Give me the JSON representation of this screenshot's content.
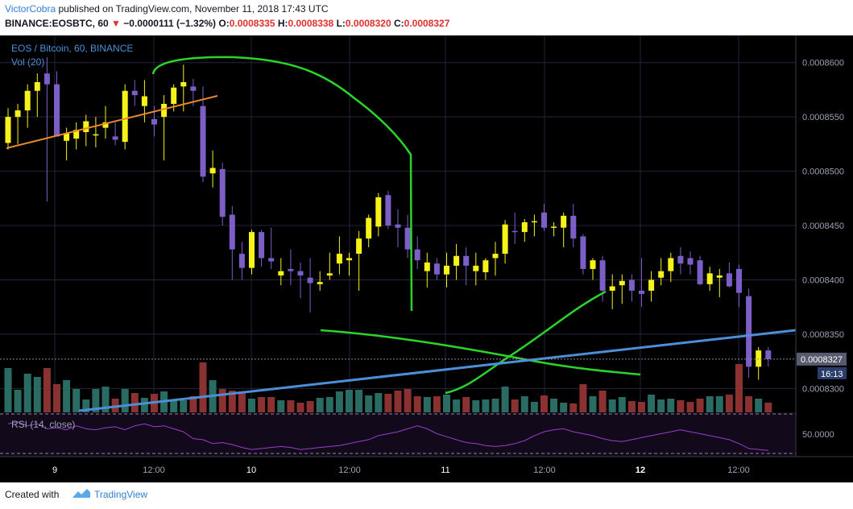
{
  "header": {
    "author": "VictorCobra",
    "published_text": " published on TradingView.com, November 11, 2018 17:43 UTC",
    "symbol_info": "BINANCE:EOSBTC, 60",
    "change_arrow": "▼",
    "change": "−0.0000111 (−1.32%)",
    "o_label": "O:",
    "o_value": "0.0008335",
    "h_label": "H:",
    "h_value": "0.0008338",
    "l_label": "L:",
    "l_value": "0.0008320",
    "c_label": "C:",
    "c_value": "0.0008327"
  },
  "legend": {
    "title": "EOS / Bitcoin, 60, BINANCE",
    "volume": "Vol (20)",
    "rsi": "RSI (14, close)"
  },
  "price_axis": {
    "ticks": [
      "0.0008600",
      "0.0008550",
      "0.0008500",
      "0.0008450",
      "0.0008400",
      "0.0008350",
      "0.0008300"
    ],
    "tick_values": [
      0.00086,
      0.000855,
      0.00085,
      0.000845,
      0.00084,
      0.000835,
      0.00083
    ],
    "current_price": "0.0008327",
    "current_price_value": 0.0008327,
    "countdown": "16:13",
    "rsi_tick": "50.0000"
  },
  "time_axis": {
    "labels": [
      "9",
      "12:00",
      "10",
      "12:00",
      "11",
      "12:00",
      "12",
      "12:00"
    ]
  },
  "footer": {
    "created_with": "Created with",
    "brand": "TradingView"
  },
  "colors": {
    "bull": "#f7f21a",
    "bear": "#7b5fc7",
    "vol_bull": "#2a6b63",
    "vol_bear": "#8a3232",
    "green_drawing": "#2bd42b",
    "trendline": "#4a8fd8",
    "orange_line": "#e8892c",
    "rsi_line": "#9d3ad0",
    "grid": "#25253d",
    "rsi_band": "#1a0f24",
    "price_label_bg": "#575b6b"
  },
  "chart_data": {
    "type": "candlestick",
    "title": "EOS / Bitcoin, 60, BINANCE",
    "interval": "60",
    "ylim": [
      0.000828,
      0.000863
    ],
    "x_labels": [
      "9",
      "12:00",
      "10",
      "12:00",
      "11",
      "12:00",
      "12",
      "12:00"
    ],
    "candles": [
      [
        0.0008526,
        0.0008558,
        0.000852,
        0.000855
      ],
      [
        0.000855,
        0.0008562,
        0.0008525,
        0.0008556
      ],
      [
        0.0008556,
        0.000858,
        0.000854,
        0.0008574
      ],
      [
        0.0008574,
        0.000859,
        0.000855,
        0.0008582
      ],
      [
        0.000859,
        0.0008605,
        0.0008472,
        0.000858
      ],
      [
        0.000858,
        0.0008592,
        0.0008535,
        0.0008532
      ],
      [
        0.0008528,
        0.000854,
        0.000851,
        0.0008535
      ],
      [
        0.000853,
        0.0008545,
        0.000852,
        0.0008538
      ],
      [
        0.0008536,
        0.0008552,
        0.0008523,
        0.0008546
      ],
      [
        0.0008534,
        0.000855,
        0.0008522,
        0.0008534
      ],
      [
        0.000854,
        0.000856,
        0.000853,
        0.0008545
      ],
      [
        0.0008532,
        0.0008545,
        0.0008524,
        0.0008529
      ],
      [
        0.0008527,
        0.000858,
        0.000852,
        0.0008574
      ],
      [
        0.0008574,
        0.0008584,
        0.000856,
        0.000857
      ],
      [
        0.000856,
        0.0008584,
        0.0008545,
        0.0008569
      ],
      [
        0.0008548,
        0.000856,
        0.0008532,
        0.0008543
      ],
      [
        0.000855,
        0.000857,
        0.000851,
        0.0008562
      ],
      [
        0.0008562,
        0.000858,
        0.0008555,
        0.0008577
      ],
      [
        0.0008578,
        0.0008598,
        0.0008555,
        0.0008582
      ],
      [
        0.0008578,
        0.0008585,
        0.000856,
        0.0008574
      ],
      [
        0.000856,
        0.0008578,
        0.000849,
        0.0008495
      ],
      [
        0.0008498,
        0.0008519,
        0.0008485,
        0.0008503
      ],
      [
        0.0008502,
        0.0008508,
        0.000845,
        0.0008458
      ],
      [
        0.000846,
        0.0008468,
        0.00084,
        0.0008428
      ],
      [
        0.0008424,
        0.0008435,
        0.00084,
        0.0008411
      ],
      [
        0.0008411,
        0.0008446,
        0.0008405,
        0.0008444
      ],
      [
        0.0008444,
        0.0008446,
        0.0008412,
        0.000842
      ],
      [
        0.000842,
        0.0008448,
        0.000841,
        0.0008417
      ],
      [
        0.0008404,
        0.000842,
        0.0008395,
        0.0008408
      ],
      [
        0.000841,
        0.0008428,
        0.0008395,
        0.0008408
      ],
      [
        0.0008408,
        0.0008416,
        0.0008383,
        0.0008404
      ],
      [
        0.0008402,
        0.000842,
        0.000837,
        0.0008397
      ],
      [
        0.0008396,
        0.0008408,
        0.000839,
        0.0008398
      ],
      [
        0.0008404,
        0.0008425,
        0.00084,
        0.0008406
      ],
      [
        0.0008415,
        0.000844,
        0.0008405,
        0.0008424
      ],
      [
        0.0008418,
        0.0008425,
        0.0008404,
        0.000842
      ],
      [
        0.0008424,
        0.0008445,
        0.000839,
        0.0008438
      ],
      [
        0.0008438,
        0.000846,
        0.000843,
        0.0008457
      ],
      [
        0.0008449,
        0.000848,
        0.000844,
        0.0008476
      ],
      [
        0.0008478,
        0.0008482,
        0.0008447,
        0.000845
      ],
      [
        0.0008451,
        0.0008465,
        0.000843,
        0.0008448
      ],
      [
        0.0008448,
        0.000846,
        0.000842,
        0.0008428
      ],
      [
        0.0008428,
        0.000844,
        0.000841,
        0.0008418
      ],
      [
        0.0008408,
        0.0008425,
        0.0008393,
        0.0008416
      ],
      [
        0.0008415,
        0.000842,
        0.00084,
        0.0008405
      ],
      [
        0.0008405,
        0.0008425,
        0.0008393,
        0.0008413
      ],
      [
        0.0008413,
        0.0008433,
        0.00084,
        0.0008422
      ],
      [
        0.0008422,
        0.000843,
        0.0008395,
        0.0008413
      ],
      [
        0.0008408,
        0.0008425,
        0.0008395,
        0.0008413
      ],
      [
        0.0008407,
        0.000842,
        0.00084,
        0.0008418
      ],
      [
        0.000842,
        0.0008435,
        0.0008404,
        0.0008424
      ],
      [
        0.0008424,
        0.0008455,
        0.0008415,
        0.0008451
      ],
      [
        0.0008445,
        0.0008462,
        0.0008433,
        0.0008444
      ],
      [
        0.0008444,
        0.0008456,
        0.0008435,
        0.0008453
      ],
      [
        0.0008453,
        0.000846,
        0.000844,
        0.0008454
      ],
      [
        0.0008462,
        0.000847,
        0.0008445,
        0.0008448
      ],
      [
        0.0008448,
        0.0008453,
        0.000844,
        0.0008449
      ],
      [
        0.0008448,
        0.0008462,
        0.000843,
        0.0008459
      ],
      [
        0.0008459,
        0.000847,
        0.000843,
        0.0008438
      ],
      [
        0.000844,
        0.0008442,
        0.0008405,
        0.000841
      ],
      [
        0.000841,
        0.000842,
        0.00084,
        0.0008418
      ],
      [
        0.0008418,
        0.0008422,
        0.000838,
        0.000839
      ],
      [
        0.000839,
        0.0008405,
        0.0008373,
        0.0008394
      ],
      [
        0.0008395,
        0.0008405,
        0.0008378,
        0.0008399
      ],
      [
        0.00084,
        0.0008405,
        0.000838,
        0.000839
      ],
      [
        0.000839,
        0.000842,
        0.0008375,
        0.0008387
      ],
      [
        0.000839,
        0.0008408,
        0.000838,
        0.00084
      ],
      [
        0.0008402,
        0.000842,
        0.0008395,
        0.0008408
      ],
      [
        0.0008408,
        0.0008425,
        0.0008398,
        0.000842
      ],
      [
        0.0008422,
        0.000843,
        0.0008405,
        0.0008415
      ],
      [
        0.000842,
        0.0008426,
        0.0008405,
        0.0008414
      ],
      [
        0.0008418,
        0.0008422,
        0.0008395,
        0.0008396
      ],
      [
        0.0008396,
        0.0008412,
        0.000839,
        0.0008406
      ],
      [
        0.0008402,
        0.000841,
        0.0008384,
        0.0008404
      ],
      [
        0.0008406,
        0.0008416,
        0.0008393,
        0.0008394
      ],
      [
        0.000841,
        0.0008414,
        0.0008375,
        0.0008388
      ],
      [
        0.0008385,
        0.0008392,
        0.000831,
        0.000832
      ],
      [
        0.000832,
        0.0008338,
        0.0008308,
        0.0008335
      ],
      [
        0.0008335,
        0.0008338,
        0.000832,
        0.0008327
      ]
    ],
    "volume": [
      55,
      28,
      48,
      44,
      55,
      35,
      40,
      29,
      16,
      29,
      32,
      17,
      29,
      24,
      18,
      23,
      26,
      15,
      15,
      20,
      62,
      40,
      29,
      27,
      26,
      17,
      19,
      19,
      15,
      15,
      12,
      14,
      18,
      19,
      26,
      28,
      28,
      21,
      24,
      23,
      27,
      29,
      20,
      19,
      20,
      22,
      16,
      19,
      15,
      16,
      17,
      32,
      16,
      20,
      13,
      21,
      17,
      12,
      11,
      35,
      20,
      27,
      16,
      19,
      14,
      13,
      22,
      16,
      17,
      15,
      13,
      17,
      20,
      20,
      22,
      60,
      20,
      17,
      12
    ],
    "rsi": [
      60,
      62,
      58,
      60,
      55,
      56,
      54,
      58,
      55,
      54,
      56,
      57,
      54,
      58,
      60,
      57,
      58,
      55,
      52,
      45,
      44,
      40,
      41,
      39,
      36,
      34,
      35,
      36,
      37,
      36,
      34,
      35,
      36,
      37,
      38,
      40,
      42,
      44,
      48,
      50,
      52,
      55,
      58,
      55,
      50,
      47,
      44,
      41,
      40,
      38,
      37,
      38,
      40,
      43,
      48,
      52,
      54,
      55,
      52,
      50,
      48,
      45,
      43,
      42,
      44,
      46,
      48,
      50,
      52,
      54,
      52,
      50,
      48,
      46,
      44,
      40,
      35,
      34,
      33
    ]
  }
}
